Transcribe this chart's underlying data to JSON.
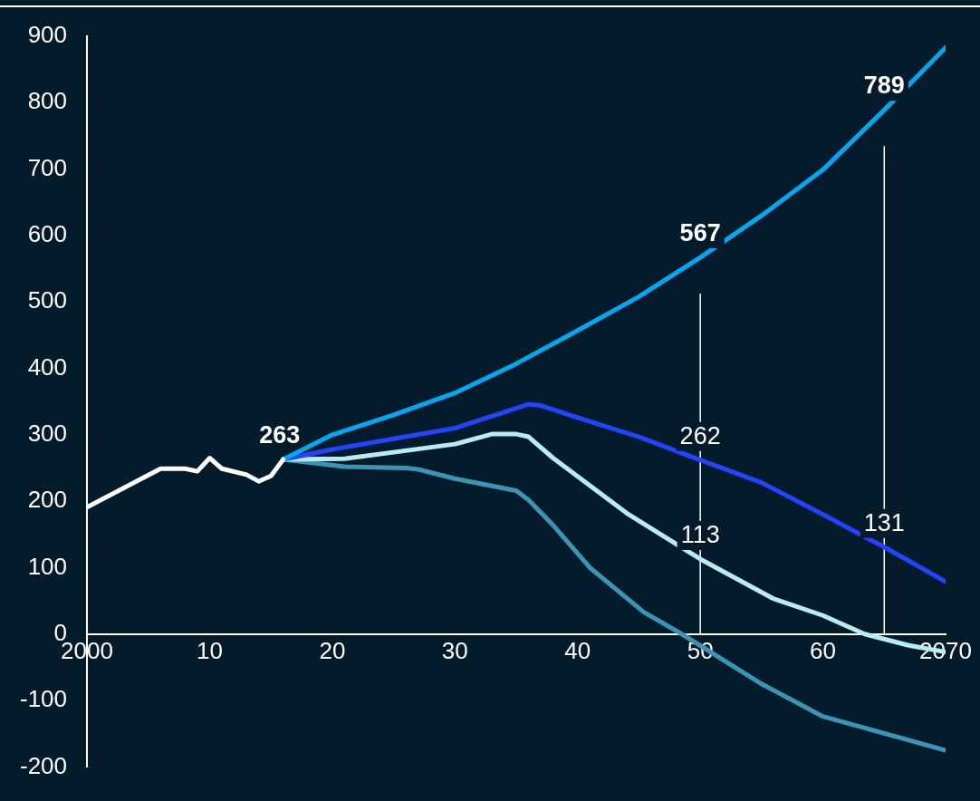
{
  "chart_data": {
    "type": "line",
    "xlim": [
      2000,
      2070
    ],
    "xticks": [
      {
        "value": 2000,
        "label": "2000"
      },
      {
        "value": 2010,
        "label": "10"
      },
      {
        "value": 2020,
        "label": "20"
      },
      {
        "value": 2030,
        "label": "30"
      },
      {
        "value": 2040,
        "label": "40"
      },
      {
        "value": 2050,
        "label": "50"
      },
      {
        "value": 2060,
        "label": "60"
      },
      {
        "value": 2070,
        "label": "2070"
      }
    ],
    "ylim": [
      -200,
      900
    ],
    "yticks": [
      -200,
      -100,
      0,
      100,
      200,
      300,
      400,
      500,
      600,
      700,
      800,
      900
    ],
    "grid": false,
    "legend": false,
    "marker": "none",
    "line_style": "solid",
    "series": [
      {
        "color": "#ffffff",
        "x": [
          2000,
          2006,
          2008,
          2009,
          2010,
          2011,
          2013,
          2014,
          2015,
          2016
        ],
        "values": [
          191,
          249,
          249,
          245,
          265,
          249,
          240,
          230,
          238,
          263
        ]
      },
      {
        "color": "#00a8f0",
        "x": [
          2016,
          2020,
          2025,
          2030,
          2035,
          2040,
          2045,
          2050,
          2055,
          2060,
          2065,
          2070
        ],
        "values": [
          263,
          300,
          330,
          363,
          407,
          457,
          508,
          567,
          630,
          699,
          789,
          883
        ]
      },
      {
        "color": "#2244ff",
        "x": [
          2016,
          2020,
          2025,
          2030,
          2033,
          2036,
          2037,
          2040,
          2045,
          2050,
          2055,
          2060,
          2065,
          2070
        ],
        "values": [
          263,
          278,
          294,
          310,
          328,
          346,
          344,
          326,
          297,
          262,
          228,
          180,
          131,
          79
        ]
      },
      {
        "color": "#b8ecf4",
        "x": [
          2016,
          2021,
          2030,
          2033,
          2035,
          2036,
          2038,
          2044,
          2050,
          2056,
          2060,
          2063.4,
          2067,
          2070
        ],
        "values": [
          263,
          264,
          286,
          301,
          301,
          297,
          265,
          182,
          113,
          53,
          28,
          0,
          -17,
          -27
        ]
      },
      {
        "color": "#3a95b5",
        "x": [
          2016,
          2021,
          2026,
          2027,
          2030,
          2035,
          2036,
          2038,
          2041,
          2045.4,
          2048.5,
          2055,
          2060,
          2070
        ],
        "values": [
          263,
          252,
          250,
          248,
          234,
          216,
          202,
          164,
          100,
          33,
          0,
          -75,
          -124,
          -175
        ]
      }
    ],
    "ref_lines": [
      {
        "axis": "x",
        "value": 2050,
        "color": "#ffffff"
      },
      {
        "axis": "x",
        "value": 2065,
        "color": "#ffffff"
      }
    ],
    "annotations": [
      {
        "text": "263",
        "x": 2016,
        "y": 263
      },
      {
        "text": "567",
        "x": 2050,
        "y": 567
      },
      {
        "text": "789",
        "x": 2065,
        "y": 789
      },
      {
        "text": "262",
        "x": 2050,
        "y": 262
      },
      {
        "text": "113",
        "x": 2050,
        "y": 113
      },
      {
        "text": "131",
        "x": 2065,
        "y": 131
      }
    ]
  }
}
